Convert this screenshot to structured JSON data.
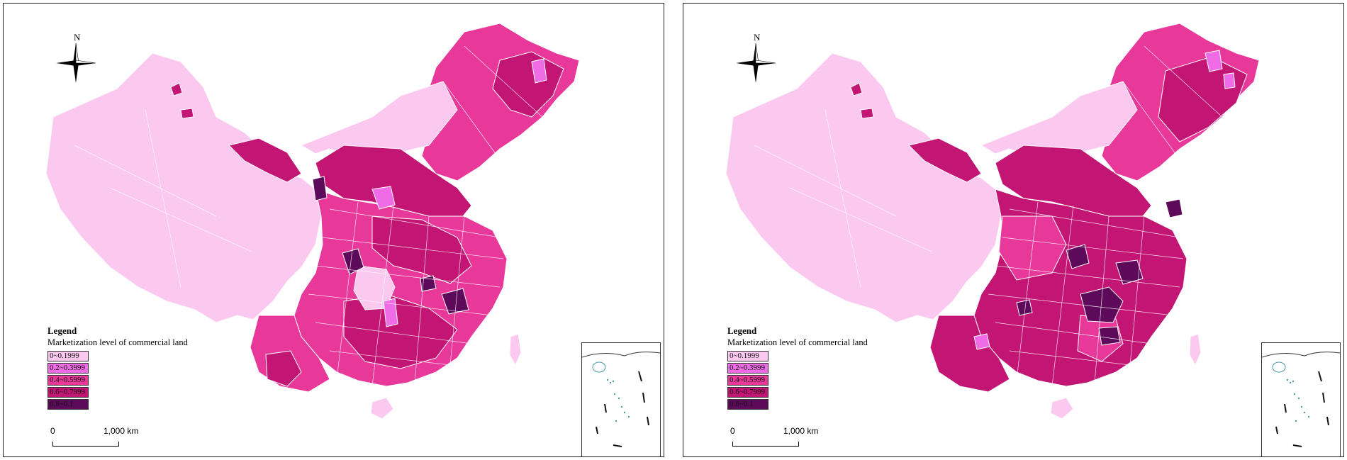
{
  "panels": [
    {
      "id": "left",
      "north_label": "N",
      "legend": {
        "title": "Legend",
        "subtitle": "Marketization level of commercial land",
        "classes": [
          {
            "label": "0~0.1999",
            "color": "#fbc8ef"
          },
          {
            "label": "0.2~0.3999",
            "color": "#f06ce6"
          },
          {
            "label": "0.4~0.5999",
            "color": "#e8399b"
          },
          {
            "label": "0.6~0.7999",
            "color": "#c21574"
          },
          {
            "label": "0.8~0.1",
            "color": "#5e0a5a"
          }
        ]
      },
      "scale": {
        "zero": "0",
        "distance": "1,000 km"
      }
    },
    {
      "id": "right",
      "north_label": "N",
      "legend": {
        "title": "Legend",
        "subtitle": "Marketization level of commercial land",
        "classes": [
          {
            "label": "0~0.1999",
            "color": "#fbc8ef"
          },
          {
            "label": "0.2~0.3999",
            "color": "#f06ce6"
          },
          {
            "label": "0.4~0.5999",
            "color": "#e8399b"
          },
          {
            "label": "0.6~0.7999",
            "color": "#c21574"
          },
          {
            "label": "0.8~0.1",
            "color": "#5e0a5a"
          }
        ]
      },
      "scale": {
        "zero": "0",
        "distance": "1,000 km"
      }
    }
  ]
}
